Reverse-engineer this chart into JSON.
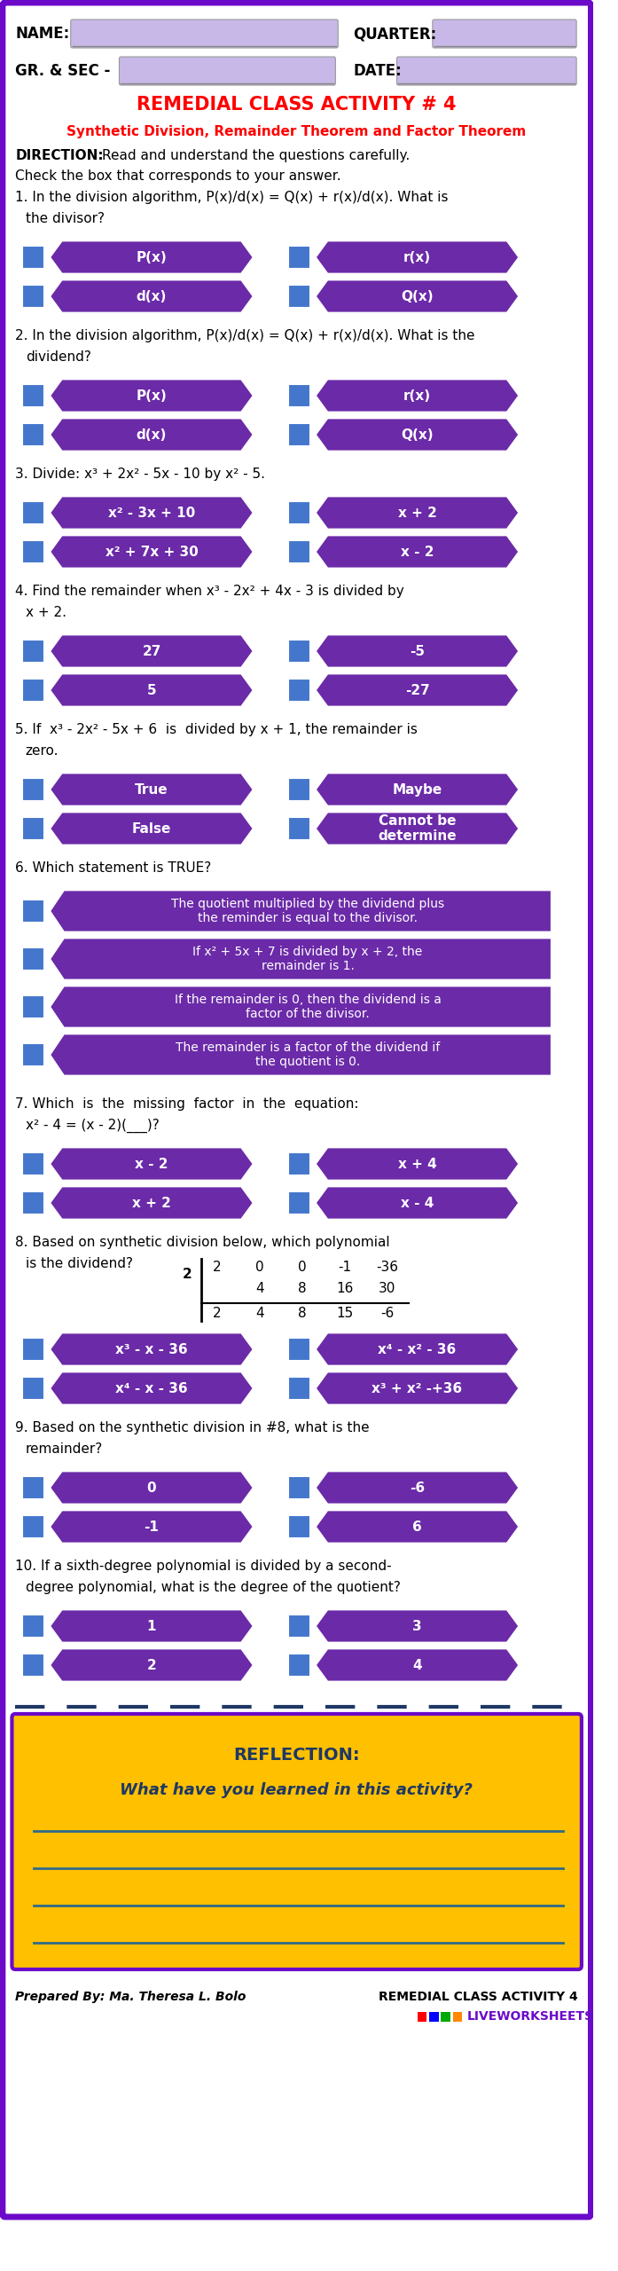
{
  "title_main": "REMEDIAL CLASS ACTIVITY # 4",
  "title_sub": "Synthetic Division, Remainder Theorem and Factor Theorem",
  "outer_border_color": "#6B0AC9",
  "purple_dark": "#6B2AA8",
  "purple_mid": "#7B35BB",
  "blue_check": "#4477CC",
  "lavender": "#C8B8E8",
  "gold": "#FFC000",
  "navy": "#1F3864",
  "questions": [
    {
      "num": "1.",
      "text_lines": [
        "In the division algorithm, P(x)/d(x) = Q(x) + r(x)/d(x). What is",
        "the divisor?"
      ],
      "options": [
        [
          "P(x)",
          "r(x)"
        ],
        [
          "d(x)",
          "Q(x)"
        ]
      ]
    },
    {
      "num": "2.",
      "text_lines": [
        "In the division algorithm, P(x)/d(x) = Q(x) + r(x)/d(x). What is the",
        "dividend?"
      ],
      "options": [
        [
          "P(x)",
          "r(x)"
        ],
        [
          "d(x)",
          "Q(x)"
        ]
      ]
    },
    {
      "num": "3.",
      "text_lines": [
        "Divide: x³ + 2x² - 5x - 10 by x² - 5."
      ],
      "options": [
        [
          "x² - 3x + 10",
          "x + 2"
        ],
        [
          "x² + 7x + 30",
          "x - 2"
        ]
      ]
    },
    {
      "num": "4.",
      "text_lines": [
        "Find the remainder when x³ - 2x² + 4x - 3 is divided by",
        "x + 2."
      ],
      "options": [
        [
          "27",
          "-5"
        ],
        [
          "5",
          "-27"
        ]
      ]
    },
    {
      "num": "5.",
      "text_lines": [
        "If  x³ - 2x² - 5x + 6  is  divided by x + 1, the remainder is",
        "zero."
      ],
      "options": [
        [
          "True",
          "Maybe"
        ],
        [
          "False",
          "Cannot be\ndetermine"
        ]
      ]
    },
    {
      "num": "6.",
      "text_lines": [
        "Which statement is TRUE?"
      ],
      "long_options": [
        "The quotient multiplied by the dividend plus\nthe reminder is equal to the divisor.",
        "If x² + 5x + 7 is divided by x + 2, the\nremainder is 1.",
        "If the remainder is 0, then the dividend is a\nfactor of the divisor.",
        "The remainder is a factor of the dividend if\nthe quotient is 0."
      ]
    },
    {
      "num": "7.",
      "text_lines": [
        "Which  is  the  missing  factor  in  the  equation:",
        "x² - 4 = (x - 2)(___)?"
      ],
      "options": [
        [
          "x - 2",
          "x + 4"
        ],
        [
          "x + 2",
          "x - 4"
        ]
      ]
    },
    {
      "num": "8.",
      "text_lines": [
        "Based on synthetic division below, which polynomial",
        "is the dividend?"
      ],
      "synth_div": {
        "divisor": "2",
        "row1": [
          "2",
          "0",
          "0",
          "-1",
          "-36"
        ],
        "row2": [
          "",
          "4",
          "8",
          "16",
          "30"
        ],
        "row3": [
          "2",
          "4",
          "8",
          "15",
          "-6"
        ]
      },
      "options": [
        [
          "x³ - x - 36",
          "x⁴ - x² - 36"
        ],
        [
          "x⁴ - x - 36",
          "x³ + x² -+36"
        ]
      ]
    },
    {
      "num": "9.",
      "text_lines": [
        "Based on the synthetic division in #8, what is the",
        "remainder?"
      ],
      "options": [
        [
          "0",
          "-6"
        ],
        [
          "-1",
          "6"
        ]
      ]
    },
    {
      "num": "10.",
      "text_lines": [
        "If a sixth-degree polynomial is divided by a second-",
        "degree polynomial, what is the degree of the quotient?"
      ],
      "options": [
        [
          "1",
          "3"
        ],
        [
          "2",
          "4"
        ]
      ]
    }
  ],
  "reflection_title": "REFLECTION:",
  "reflection_question": "What have you learned in this activity?",
  "footer_left": "Prepared By: Ma. Theresa L. Bolo",
  "footer_right": "REMEDIAL CLASS ACTIVITY 4",
  "footer_brand": "LIVEWORKSHEETS"
}
